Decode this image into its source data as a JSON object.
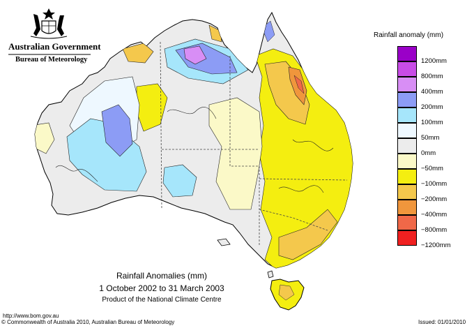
{
  "logo": {
    "government": "Australian Government",
    "agency": "Bureau of Meteorology"
  },
  "legend": {
    "title": "Rainfall anomaly (mm)",
    "items": [
      {
        "label": "1200mm",
        "color": "#9a00c8"
      },
      {
        "label": "800mm",
        "color": "#c84ce6"
      },
      {
        "label": "400mm",
        "color": "#d88ef5"
      },
      {
        "label": "200mm",
        "color": "#8c9cf5"
      },
      {
        "label": "100mm",
        "color": "#a6e6fb"
      },
      {
        "label": "50mm",
        "color": "#eef8ff"
      },
      {
        "label": "0mm",
        "color": "#ececec"
      },
      {
        "label": "−50mm",
        "color": "#fbf9c8"
      },
      {
        "label": "−100mm",
        "color": "#f4ee10"
      },
      {
        "label": "−200mm",
        "color": "#f4c84c"
      },
      {
        "label": "−400mm",
        "color": "#f0963c"
      },
      {
        "label": "−800mm",
        "color": "#f06848"
      },
      {
        "label": "−1200mm",
        "color": "#f02020"
      }
    ]
  },
  "map": {
    "title": "Rainfall Anomalies (mm)",
    "period": "1 October 2002 to 31 March 2003",
    "product": "Product of the National Climate Centre"
  },
  "footer": {
    "url": "http://www.bom.gov.au",
    "copyright": "© Commonwealth of Australia 2010, Australian Bureau of Meteorology",
    "issued": "Issued: 01/01/2010"
  }
}
